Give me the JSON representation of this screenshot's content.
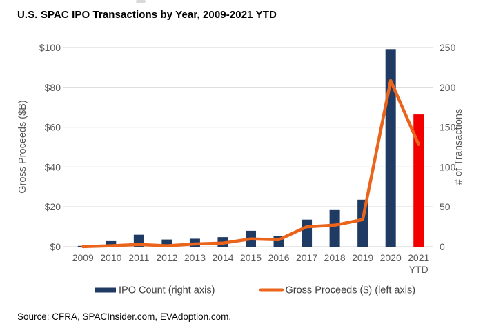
{
  "page": {
    "title": "U.S. SPAC IPO Transactions by Year, 2009-2021 YTD",
    "source": "Source: CFRA, SPACInsider.com, EVAdoption.com."
  },
  "colors": {
    "bar": "#1f3a63",
    "bar_highlight": "#f20000",
    "line": "#ea641c",
    "grid": "#d9d9d9",
    "tick_text": "#595959",
    "axis_title_text": "#595959",
    "legend_text": "#3d3d3d"
  },
  "chart_data": {
    "type": "bar+line combo",
    "categories": [
      "2009",
      "2010",
      "2011",
      "2012",
      "2013",
      "2014",
      "2015",
      "2016",
      "2017",
      "2018",
      "2019",
      "2020",
      "2021 YTD"
    ],
    "series": [
      {
        "name": "IPO Count (right axis)",
        "type": "bar",
        "axis": "right",
        "values": [
          1,
          7,
          15,
          9,
          10,
          12,
          20,
          13,
          34,
          46,
          59,
          248,
          166
        ],
        "color": "#1f3a63",
        "highlight": {
          "index": 12,
          "color": "#f20000"
        }
      },
      {
        "name": "Gross Proceeds ($) (left axis)",
        "type": "line",
        "axis": "left",
        "values": [
          0.04,
          0.5,
          1.1,
          0.5,
          1.4,
          1.8,
          3.9,
          3.5,
          10.0,
          10.8,
          13.6,
          83.4,
          51.3
        ],
        "color": "#ea641c"
      }
    ],
    "left_axis": {
      "label": "Gross Proceeds ($B)",
      "min": 0,
      "max": 100,
      "step": 20,
      "ticks": [
        "$0",
        "$20",
        "$40",
        "$60",
        "$80",
        "$100"
      ]
    },
    "right_axis": {
      "label": "# of Transactions",
      "min": 0,
      "max": 250,
      "step": 50,
      "ticks": [
        "0",
        "50",
        "100",
        "150",
        "200",
        "250"
      ]
    },
    "grid": true,
    "legend_position": "bottom"
  }
}
